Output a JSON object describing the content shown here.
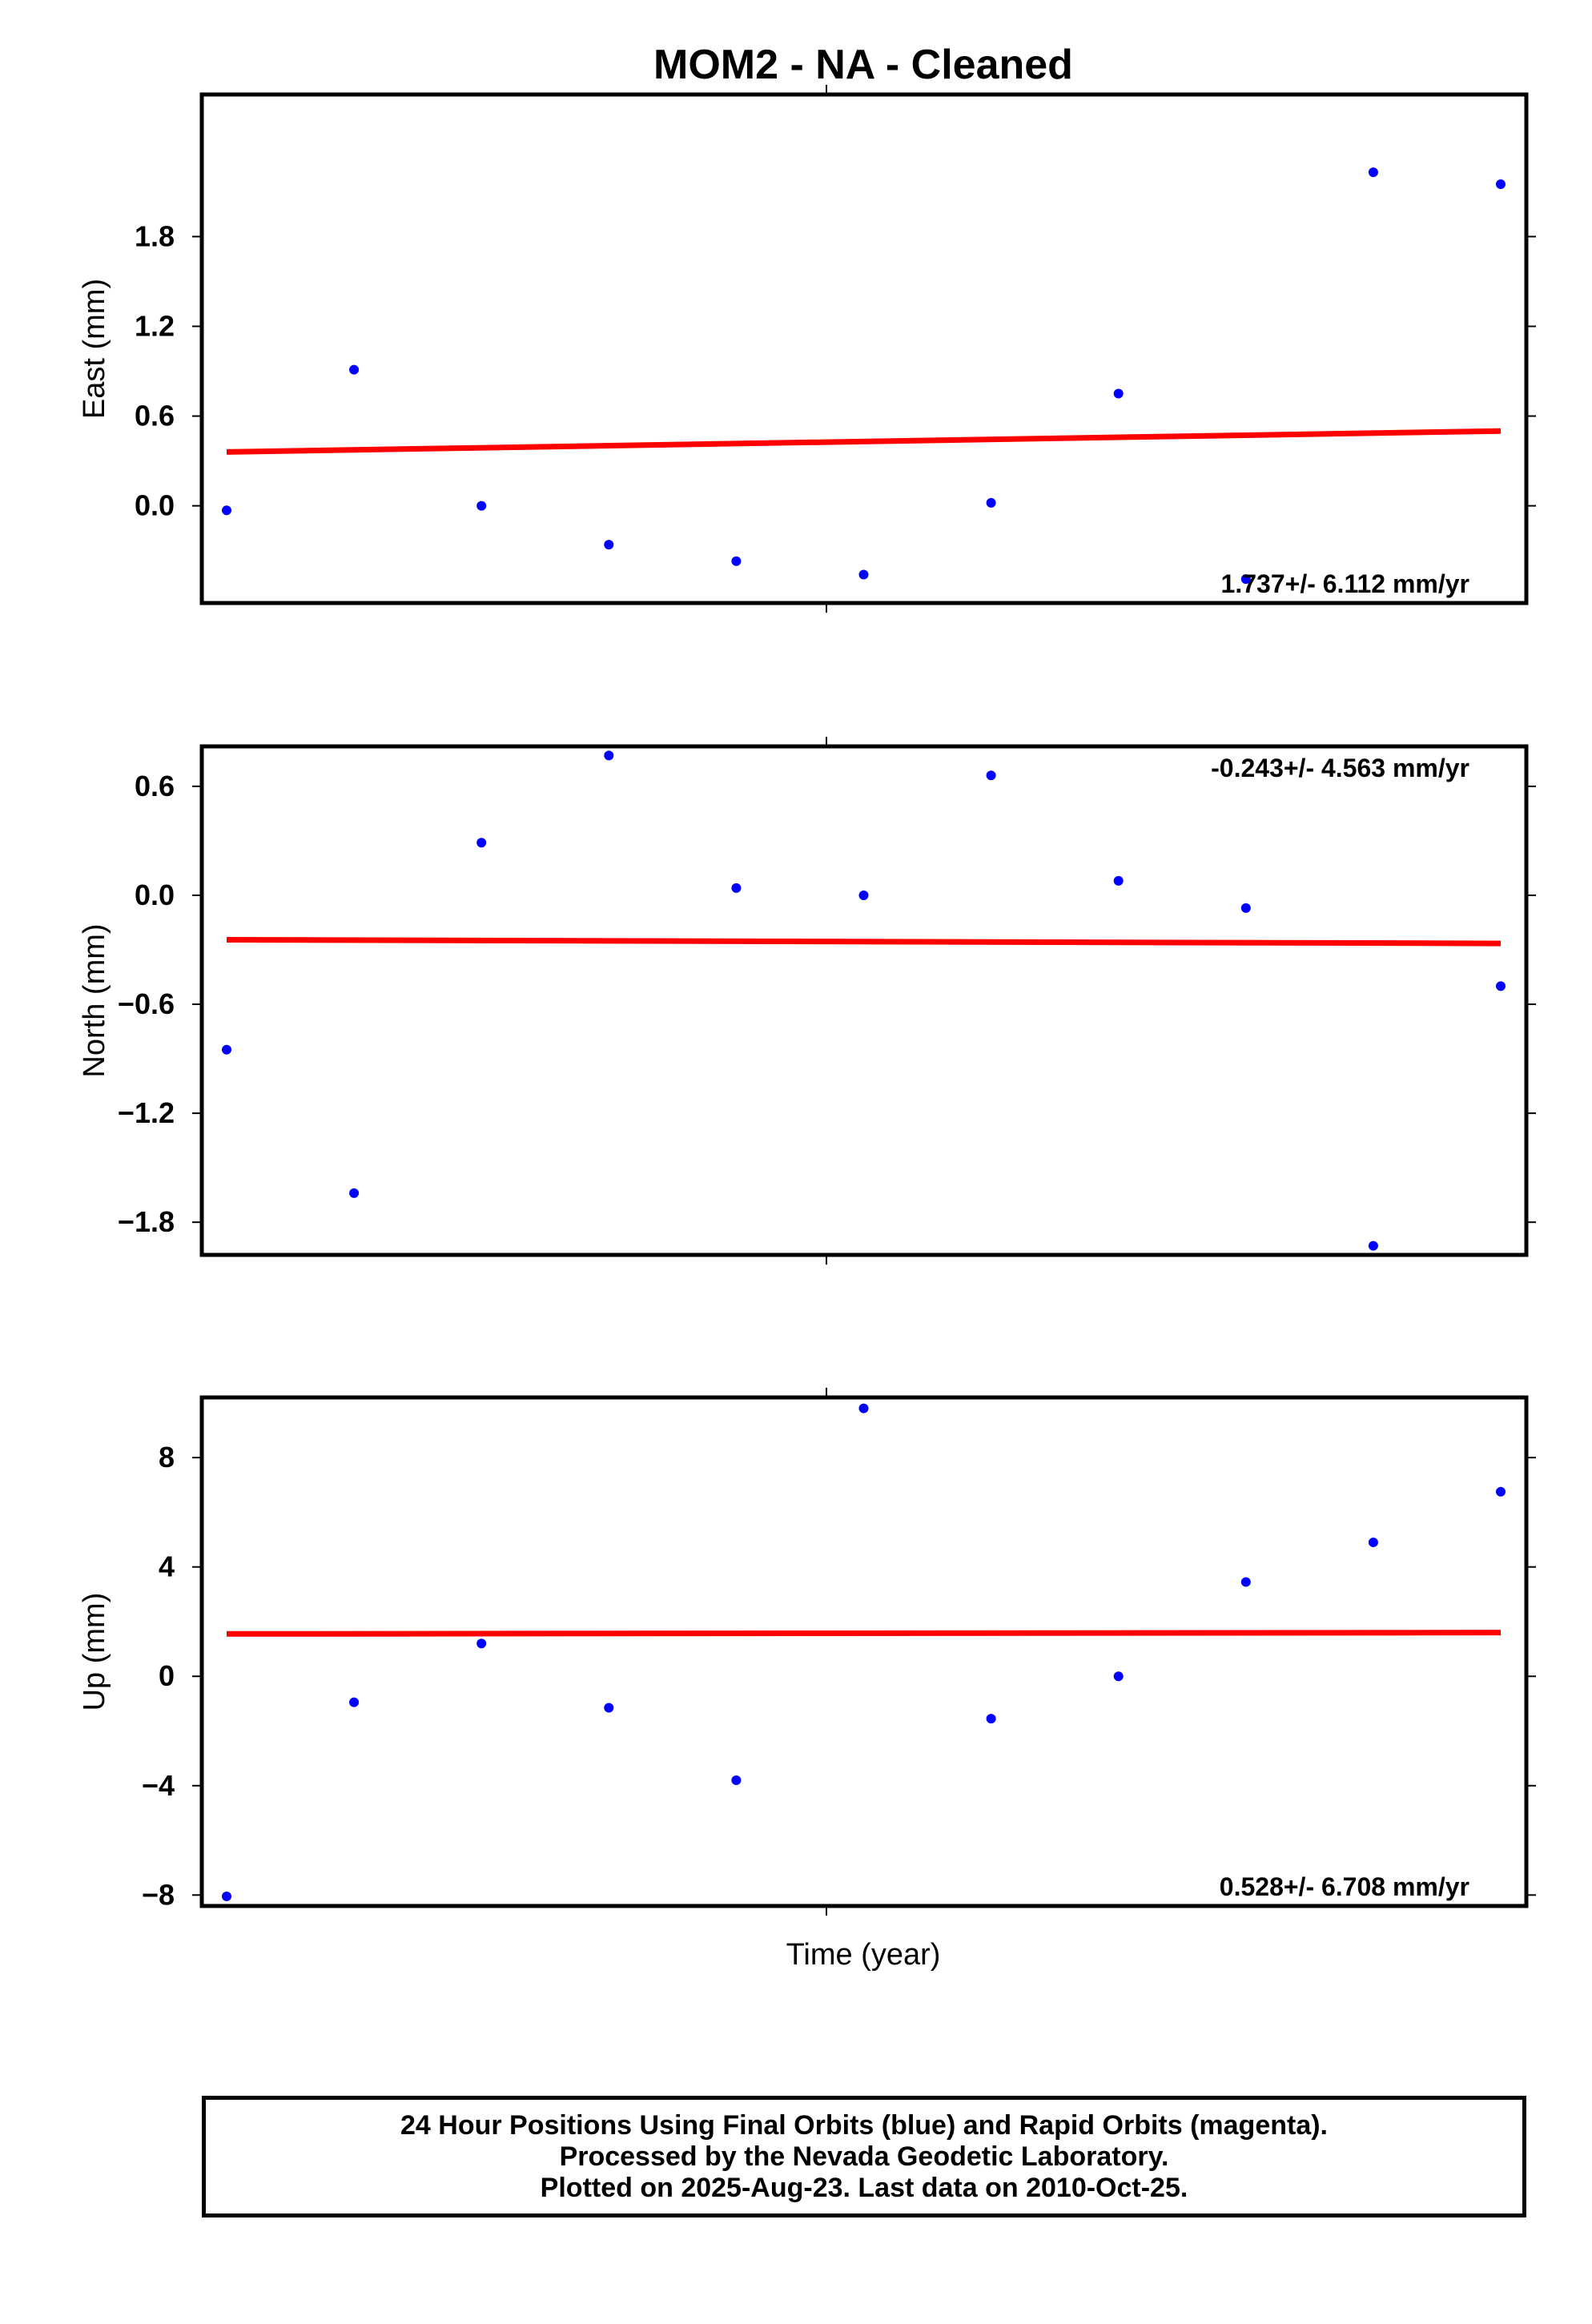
{
  "colors": {
    "points": "#0000ff",
    "fit": "#ff0000",
    "frame": "#000000"
  },
  "chart_data": {
    "type": "scatter",
    "title": "MOM2  - NA - Cleaned",
    "xlabel": "Time (year)",
    "x_tick_labels_shown": false,
    "points_per_series": 11,
    "panels": [
      {
        "name": "east",
        "ylabel": "East (mm)",
        "ylim": [
          -0.65,
          2.75
        ],
        "yticks": [
          0.0,
          0.6,
          1.2,
          1.8
        ],
        "ytick_labels": [
          "0.0",
          "0.6",
          "1.2",
          "1.8"
        ],
        "values": [
          -0.03,
          0.91,
          0.0,
          -0.26,
          -0.37,
          -0.46,
          0.02,
          0.75,
          -0.49,
          2.23,
          2.15
        ],
        "fit": [
          0.36,
          0.5
        ],
        "rate_label": "1.737+/- 6.112 mm/yr",
        "rate_label_position": "bottom-right"
      },
      {
        "name": "north",
        "ylabel": "North (mm)",
        "ylim": [
          -1.98,
          0.82
        ],
        "yticks": [
          -1.8,
          -1.2,
          -0.6,
          0.0,
          0.6
        ],
        "ytick_labels": [
          "−1.8",
          "−1.2",
          "−0.6",
          "0.0",
          "0.6"
        ],
        "values": [
          -0.85,
          -1.64,
          0.29,
          0.77,
          0.04,
          0.0,
          0.66,
          0.08,
          -0.07,
          -1.93,
          -0.5
        ],
        "fit": [
          -0.245,
          -0.265
        ],
        "rate_label": "-0.243+/- 4.563 mm/yr",
        "rate_label_position": "top-right"
      },
      {
        "name": "up",
        "ylabel": "Up (mm)",
        "ylim": [
          -8.4,
          10.2
        ],
        "yticks": [
          -8,
          -4,
          0,
          4,
          8
        ],
        "ytick_labels": [
          "−8",
          "−4",
          "0",
          "4",
          "8"
        ],
        "values": [
          -8.05,
          -0.95,
          1.2,
          -1.15,
          -3.8,
          9.8,
          -1.55,
          0.0,
          3.45,
          4.9,
          6.75
        ],
        "fit": [
          1.55,
          1.6
        ],
        "rate_label": "0.528+/- 6.708 mm/yr",
        "rate_label_position": "bottom-right"
      }
    ]
  },
  "footer": {
    "lines": [
      "24 Hour Positions Using Final Orbits (blue) and Rapid Orbits (magenta).",
      "Processed by the Nevada Geodetic Laboratory.",
      "Plotted on 2025-Aug-23. Last data on 2010-Oct-25."
    ]
  }
}
